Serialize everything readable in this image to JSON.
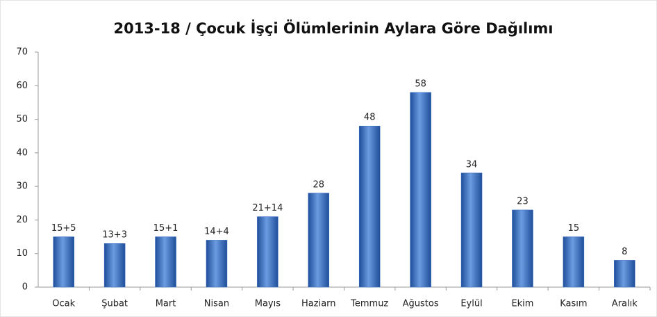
{
  "chart_data": {
    "type": "bar",
    "title": "2013-18 / Çocuk İşçi Ölümlerinin Aylara Göre Dağılımı",
    "categories": [
      "Ocak",
      "Şubat",
      "Mart",
      "Nisan",
      "Mayıs",
      "Haziarn",
      "Temmuz",
      "Ağustos",
      "Eylül",
      "Ekim",
      "Kasım",
      "Aralık"
    ],
    "values": [
      15,
      13,
      15,
      14,
      21,
      28,
      48,
      58,
      34,
      23,
      15,
      8
    ],
    "value_labels": [
      "15+5",
      "13+3",
      "15+1",
      "14+4",
      "21+14",
      "28",
      "48",
      "58",
      "34",
      "23",
      "15",
      "8"
    ],
    "color": "#3a6fc4",
    "ylim": [
      0,
      70
    ],
    "yticks": [
      0,
      10,
      20,
      30,
      40,
      50,
      60,
      70
    ],
    "grid": false
  }
}
